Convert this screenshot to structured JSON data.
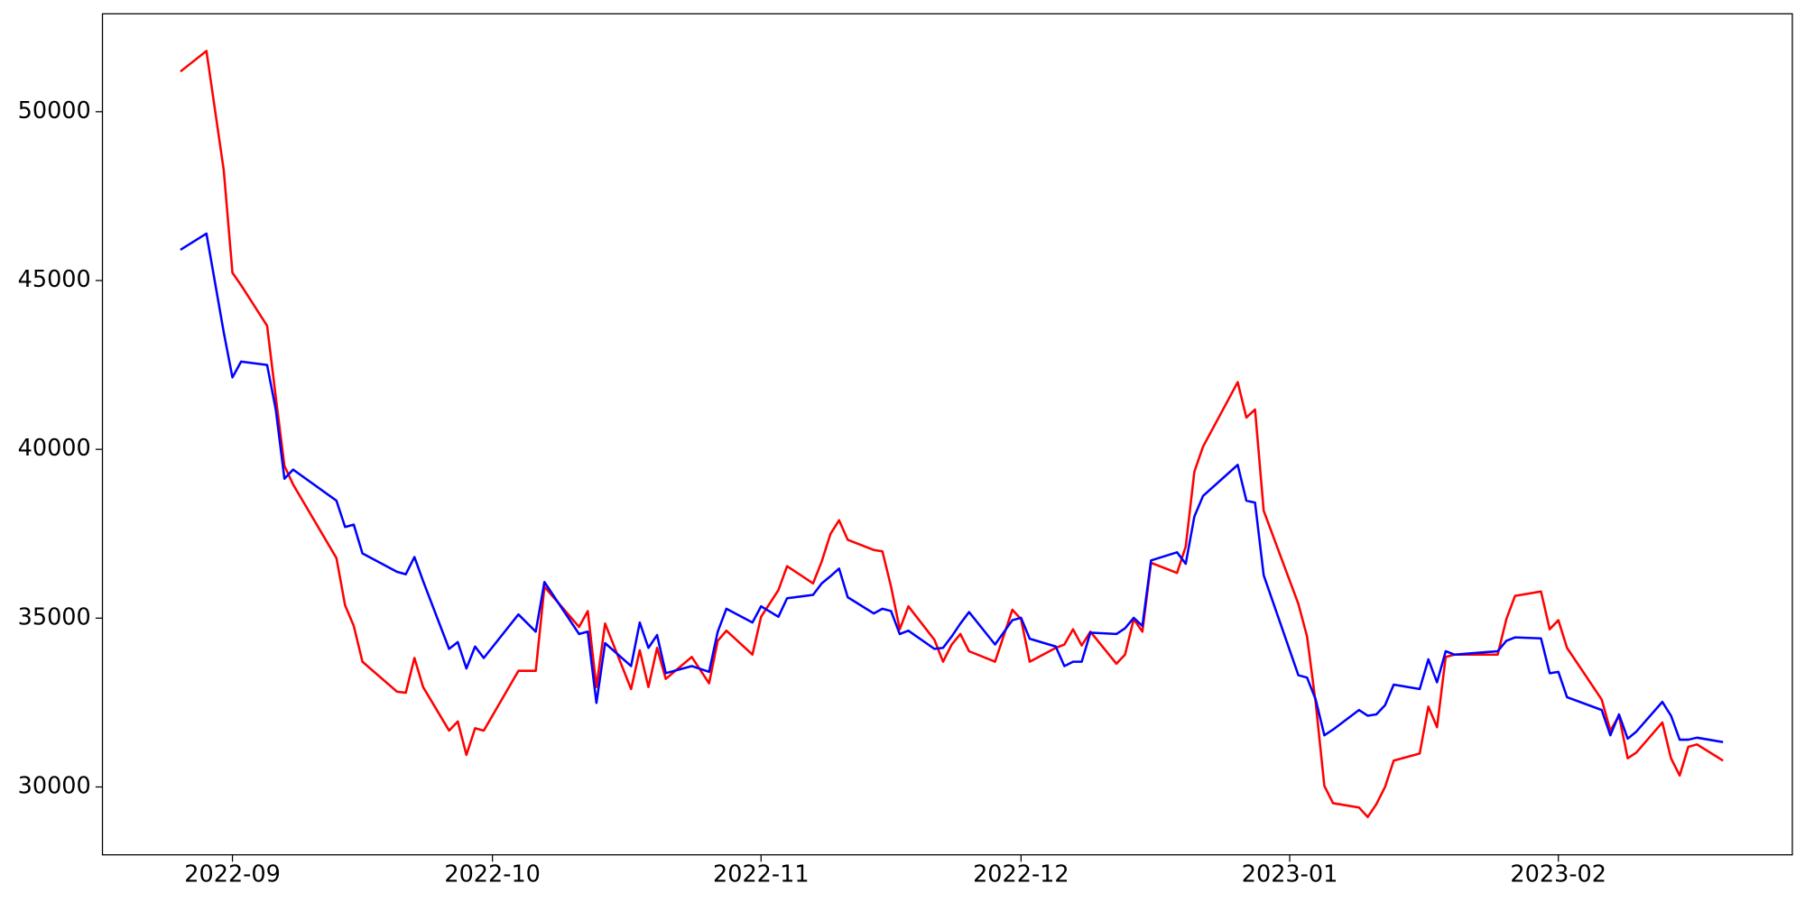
{
  "chart_data": {
    "type": "line",
    "x": [
      "2022-08-26",
      "2022-08-29",
      "2022-08-31",
      "2022-09-01",
      "2022-09-02",
      "2022-09-05",
      "2022-09-06",
      "2022-09-07",
      "2022-09-08",
      "2022-09-13",
      "2022-09-14",
      "2022-09-15",
      "2022-09-16",
      "2022-09-20",
      "2022-09-21",
      "2022-09-22",
      "2022-09-23",
      "2022-09-26",
      "2022-09-27",
      "2022-09-28",
      "2022-09-29",
      "2022-09-30",
      "2022-10-04",
      "2022-10-06",
      "2022-10-07",
      "2022-10-11",
      "2022-10-12",
      "2022-10-13",
      "2022-10-14",
      "2022-10-17",
      "2022-10-18",
      "2022-10-19",
      "2022-10-20",
      "2022-10-21",
      "2022-10-24",
      "2022-10-26",
      "2022-10-27",
      "2022-10-28",
      "2022-10-31",
      "2022-11-01",
      "2022-11-03",
      "2022-11-04",
      "2022-11-07",
      "2022-11-08",
      "2022-11-09",
      "2022-11-10",
      "2022-11-11",
      "2022-11-14",
      "2022-11-15",
      "2022-11-16",
      "2022-11-17",
      "2022-11-18",
      "2022-11-21",
      "2022-11-22",
      "2022-11-23",
      "2022-11-24",
      "2022-11-25",
      "2022-11-28",
      "2022-11-30",
      "2022-12-01",
      "2022-12-02",
      "2022-12-05",
      "2022-12-06",
      "2022-12-07",
      "2022-12-08",
      "2022-12-09",
      "2022-12-12",
      "2022-12-13",
      "2022-12-14",
      "2022-12-15",
      "2022-12-16",
      "2022-12-19",
      "2022-12-20",
      "2022-12-21",
      "2022-12-22",
      "2022-12-26",
      "2022-12-27",
      "2022-12-28",
      "2022-12-29",
      "2023-01-02",
      "2023-01-03",
      "2023-01-04",
      "2023-01-05",
      "2023-01-06",
      "2023-01-09",
      "2023-01-10",
      "2023-01-11",
      "2023-01-12",
      "2023-01-13",
      "2023-01-16",
      "2023-01-17",
      "2023-01-18",
      "2023-01-19",
      "2023-01-20",
      "2023-01-25",
      "2023-01-26",
      "2023-01-27",
      "2023-01-30",
      "2023-01-31",
      "2023-02-01",
      "2023-02-02",
      "2023-02-06",
      "2023-02-07",
      "2023-02-08",
      "2023-02-09",
      "2023-02-10",
      "2023-02-13",
      "2023-02-14",
      "2023-02-15",
      "2023-02-16",
      "2023-02-17",
      "2023-02-20"
    ],
    "series": [
      {
        "color": "#ff0000",
        "values": [
          51190,
          51800,
          48260,
          45230,
          44860,
          43660,
          41550,
          39510,
          38960,
          36780,
          35380,
          34770,
          33710,
          32820,
          32790,
          33820,
          32960,
          31670,
          31940,
          30950,
          31740,
          31670,
          33440,
          33440,
          35930,
          34740,
          35210,
          32960,
          34840,
          32900,
          34050,
          32960,
          34120,
          33200,
          33850,
          33070,
          34330,
          34630,
          33920,
          35040,
          35830,
          36540,
          36030,
          36680,
          37490,
          37900,
          37320,
          37020,
          36980,
          35930,
          34670,
          35350,
          34360,
          33710,
          34220,
          34530,
          34020,
          33710,
          35250,
          34970,
          33710,
          34120,
          34220,
          34670,
          34190,
          34600,
          33650,
          33920,
          34970,
          34600,
          36640,
          36340,
          37120,
          39340,
          40080,
          41990,
          40940,
          41180,
          38180,
          35420,
          34460,
          32490,
          30030,
          29520,
          29390,
          29110,
          29490,
          30000,
          30780,
          30990,
          32380,
          31770,
          33850,
          33920,
          33920,
          34970,
          35660,
          35790,
          34670,
          34940,
          34120,
          32590,
          31670,
          32110,
          30850,
          31020,
          31910,
          30850,
          30340,
          31190,
          31260,
          30780
        ]
      },
      {
        "color": "#0000ff",
        "values": [
          45910,
          46390,
          43460,
          42130,
          42600,
          42500,
          41180,
          39130,
          39400,
          38480,
          37700,
          37770,
          36920,
          36370,
          36300,
          36810,
          36100,
          34090,
          34290,
          33510,
          34160,
          33820,
          35110,
          34600,
          36070,
          34530,
          34600,
          32490,
          34260,
          33580,
          34870,
          34120,
          34500,
          33370,
          33580,
          33410,
          34600,
          35280,
          34870,
          35350,
          35040,
          35590,
          35690,
          36030,
          36240,
          36470,
          35620,
          35140,
          35280,
          35210,
          34530,
          34630,
          34090,
          34120,
          34460,
          34840,
          35180,
          34220,
          34940,
          35010,
          34390,
          34160,
          33580,
          33710,
          33710,
          34570,
          34530,
          34700,
          35010,
          34770,
          36710,
          36950,
          36610,
          38010,
          38620,
          39540,
          38480,
          38420,
          36270,
          33310,
          33240,
          32590,
          31530,
          31700,
          32280,
          32110,
          32150,
          32420,
          33030,
          32900,
          33780,
          33100,
          34020,
          33920,
          34020,
          34330,
          34430,
          34400,
          33370,
          33410,
          32660,
          32280,
          31530,
          32150,
          31430,
          31640,
          32520,
          32110,
          31400,
          31400,
          31460,
          31330
        ]
      }
    ],
    "xlim": [
      "2022-08-17",
      "2023-02-28"
    ],
    "xticks": [
      {
        "value": "2022-09-01",
        "label": "2022-09"
      },
      {
        "value": "2022-10-01",
        "label": "2022-10"
      },
      {
        "value": "2022-11-01",
        "label": "2022-11"
      },
      {
        "value": "2022-12-01",
        "label": "2022-12"
      },
      {
        "value": "2023-01-01",
        "label": "2023-01"
      },
      {
        "value": "2023-02-01",
        "label": "2023-02"
      }
    ],
    "ylim": [
      27990,
      52900
    ],
    "yticks": [
      30000,
      35000,
      40000,
      45000,
      50000
    ],
    "grid": false
  }
}
